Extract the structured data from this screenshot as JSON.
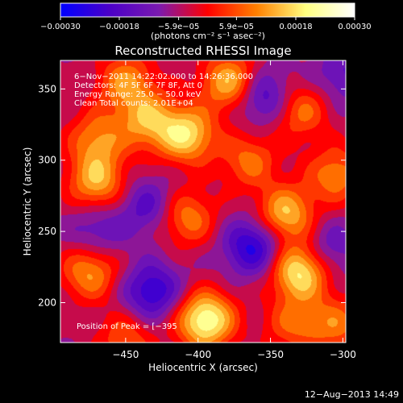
{
  "chart_data": {
    "type": "heatmap",
    "title": "Reconstructed RHESSI Image",
    "xlabel": "Heliocentric X (arcsec)",
    "ylabel": "Heliocentric Y (arcsec)",
    "xlim": [
      -495,
      -298
    ],
    "ylim": [
      172,
      370
    ],
    "xticks": [
      -450,
      -400,
      -350,
      -300
    ],
    "xtick_labels": [
      "−450",
      "−400",
      "−350",
      "−300"
    ],
    "yticks": [
      200,
      250,
      300,
      350
    ],
    "ytick_labels": [
      "200",
      "250",
      "300",
      "350"
    ],
    "colorbar": {
      "range": [
        -0.0003,
        0.0003
      ],
      "ticks": [
        -0.0003,
        -0.00018,
        -5.9e-05,
        5.9e-05,
        0.00018,
        0.0003
      ],
      "tick_labels": [
        "−0.00030",
        "−0.00018",
        "−5.9e−05",
        "5.9e−05",
        "0.00018",
        "0.00030"
      ],
      "units_label": "(photons cm⁻² s⁻¹ asec⁻²)",
      "colormap": [
        "#0000ff",
        "#4b00c8",
        "#7a1ab0",
        "#ff0000",
        "#ff8000",
        "#ffff80",
        "#ffffff"
      ]
    },
    "annotations": [
      "6−Nov−2011 14:22:02.000 to 14:26:36.000",
      "Detectors: 4F 5F 6F 7F 8F, Att 0",
      "Energy Range: 25.0 − 50.0 keV",
      "Clean    Total counts: 2.01E+04",
      "Position of Peak = [−395"
    ],
    "grid": false,
    "sources": [
      {
        "x": -395,
        "y": 188,
        "value": 0.0003
      },
      {
        "x": -330,
        "y": 222,
        "value": 0.00027
      },
      {
        "x": -340,
        "y": 262,
        "value": 0.00022
      },
      {
        "x": -408,
        "y": 318,
        "value": 0.00024
      },
      {
        "x": -378,
        "y": 355,
        "value": 0.00022
      },
      {
        "x": -470,
        "y": 285,
        "value": 0.0002
      },
      {
        "x": -470,
        "y": 315,
        "value": 0.00016
      },
      {
        "x": -435,
        "y": 328,
        "value": 0.00018
      },
      {
        "x": -450,
        "y": 355,
        "value": 0.00017
      },
      {
        "x": -475,
        "y": 222,
        "value": 0.00018
      },
      {
        "x": -408,
        "y": 260,
        "value": 0.00016
      },
      {
        "x": -365,
        "y": 300,
        "value": 0.00014
      },
      {
        "x": -330,
        "y": 335,
        "value": 0.00015
      },
      {
        "x": -305,
        "y": 290,
        "value": 0.00016
      },
      {
        "x": -305,
        "y": 185,
        "value": 0.00014
      },
      {
        "x": -450,
        "y": 175,
        "value": 0.00012
      },
      {
        "x": -335,
        "y": 185,
        "value": 0.00012
      },
      {
        "x": -362,
        "y": 240,
        "value": -0.0002
      },
      {
        "x": -432,
        "y": 208,
        "value": -0.00018
      },
      {
        "x": -355,
        "y": 345,
        "value": -0.00016
      },
      {
        "x": -435,
        "y": 268,
        "value": -0.00012
      },
      {
        "x": -470,
        "y": 250,
        "value": -0.0001
      },
      {
        "x": -300,
        "y": 360,
        "value": -0.0001
      },
      {
        "x": -310,
        "y": 238,
        "value": -0.0001
      }
    ]
  },
  "footer": {
    "timestamp": "12−Aug−2013 14:49"
  }
}
